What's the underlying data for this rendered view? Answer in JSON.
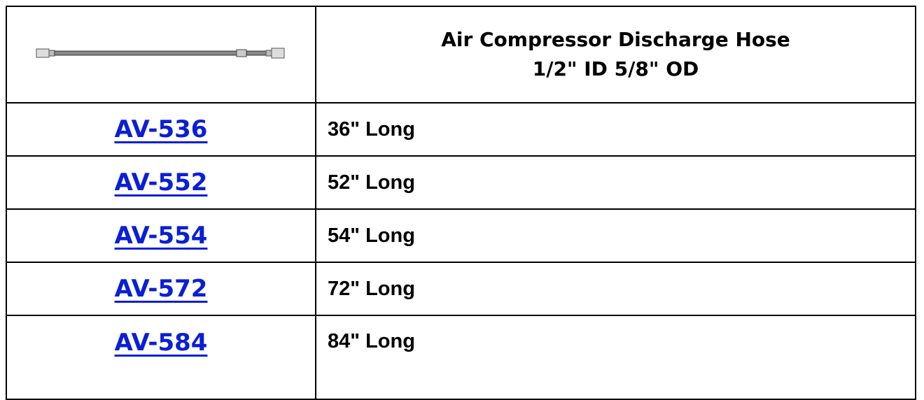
{
  "header": {
    "title_lines": [
      "Air Compressor Discharge Hose",
      "1/2\" ID 5/8\" OD"
    ]
  },
  "table": {
    "rows": [
      [
        "AV-536",
        "36\" Long"
      ],
      [
        "AV-552",
        "52\" Long"
      ],
      [
        "AV-554",
        "54\" Long"
      ],
      [
        "AV-572",
        "72\" Long"
      ],
      [
        "AV-584",
        "84\" Long"
      ]
    ]
  }
}
